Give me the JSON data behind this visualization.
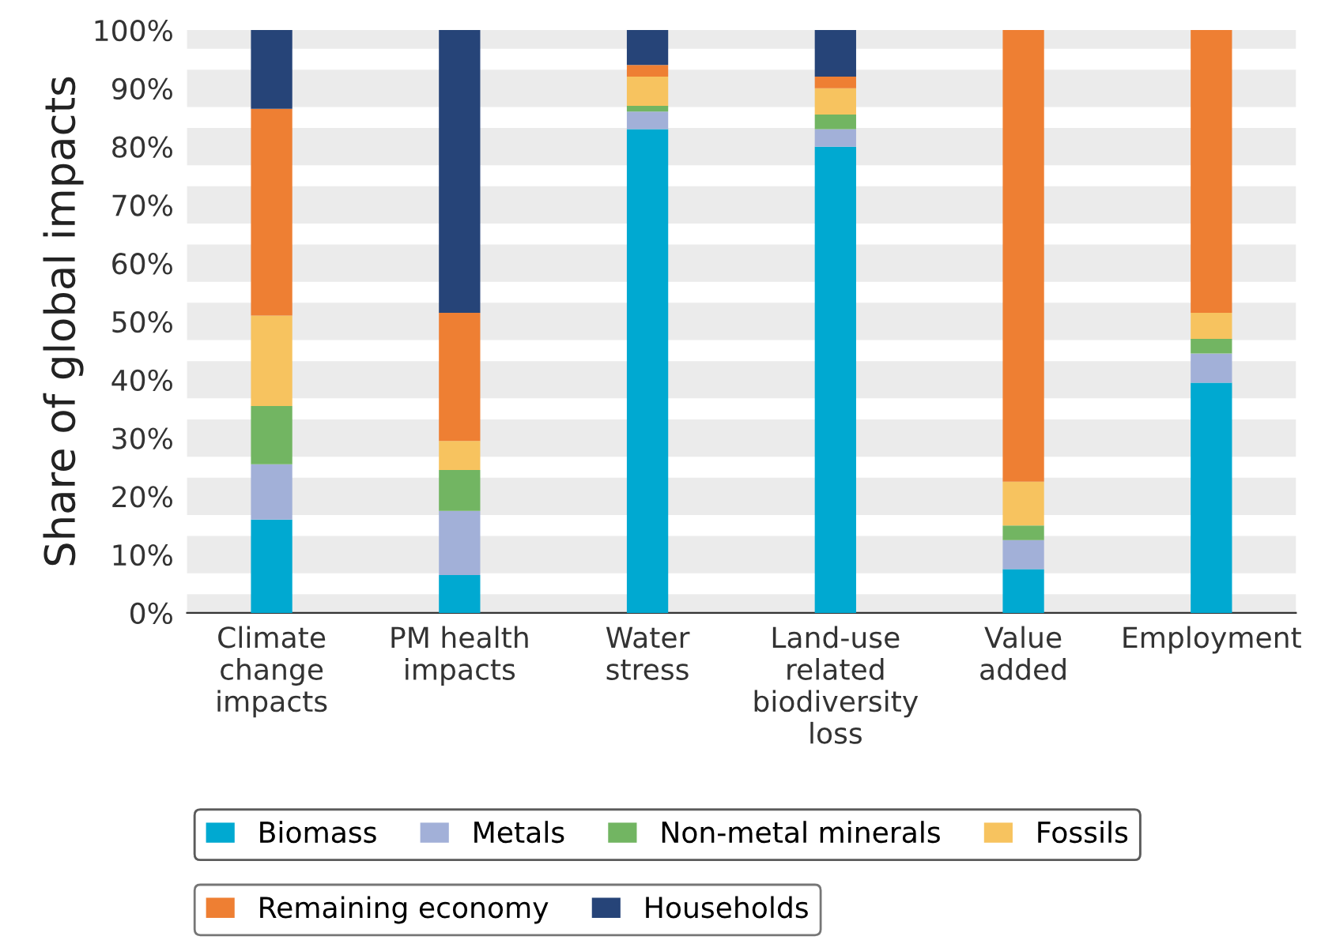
{
  "chart_data": {
    "type": "bar",
    "stacked": true,
    "ylabel": "Share of global impacts",
    "categories": [
      "Climate\nchange\nimpacts",
      "PM health\nimpacts",
      "Water\nstress",
      "Land-use\nrelated\nbiodiversity\nloss",
      "Value\nadded",
      "Employment"
    ],
    "series": [
      {
        "name": "Biomass",
        "color": "#00a9d1",
        "values": [
          16,
          6.5,
          83,
          80,
          7.5,
          39.5
        ]
      },
      {
        "name": "Metals",
        "color": "#a2b0d8",
        "values": [
          9.5,
          11,
          3,
          3,
          5,
          5
        ]
      },
      {
        "name": "Non-metal minerals",
        "color": "#72b562",
        "values": [
          10,
          7,
          1,
          2.5,
          2.5,
          2.5
        ]
      },
      {
        "name": "Fossils",
        "color": "#f7c35f",
        "values": [
          15.5,
          5,
          5,
          4.5,
          7.5,
          4.5
        ]
      },
      {
        "name": "Remaining economy",
        "color": "#ee7f33",
        "values": [
          35.5,
          22,
          2,
          2,
          77.5,
          48.5
        ]
      },
      {
        "name": "Households",
        "color": "#264478",
        "values": [
          13.5,
          48.5,
          6,
          8,
          0,
          0
        ]
      }
    ],
    "ylim": [
      0,
      100
    ],
    "yticks": [
      {
        "value": 0,
        "label": "0%"
      },
      {
        "value": 10,
        "label": "10%"
      },
      {
        "value": 20,
        "label": "20%"
      },
      {
        "value": 30,
        "label": "30%"
      },
      {
        "value": 40,
        "label": "40%"
      },
      {
        "value": 50,
        "label": "50%"
      },
      {
        "value": 60,
        "label": "60%"
      },
      {
        "value": 70,
        "label": "70%"
      },
      {
        "value": 80,
        "label": "80%"
      },
      {
        "value": 90,
        "label": "90%"
      },
      {
        "value": 100,
        "label": "100%"
      }
    ],
    "grid": "y",
    "legend": "bottom"
  }
}
